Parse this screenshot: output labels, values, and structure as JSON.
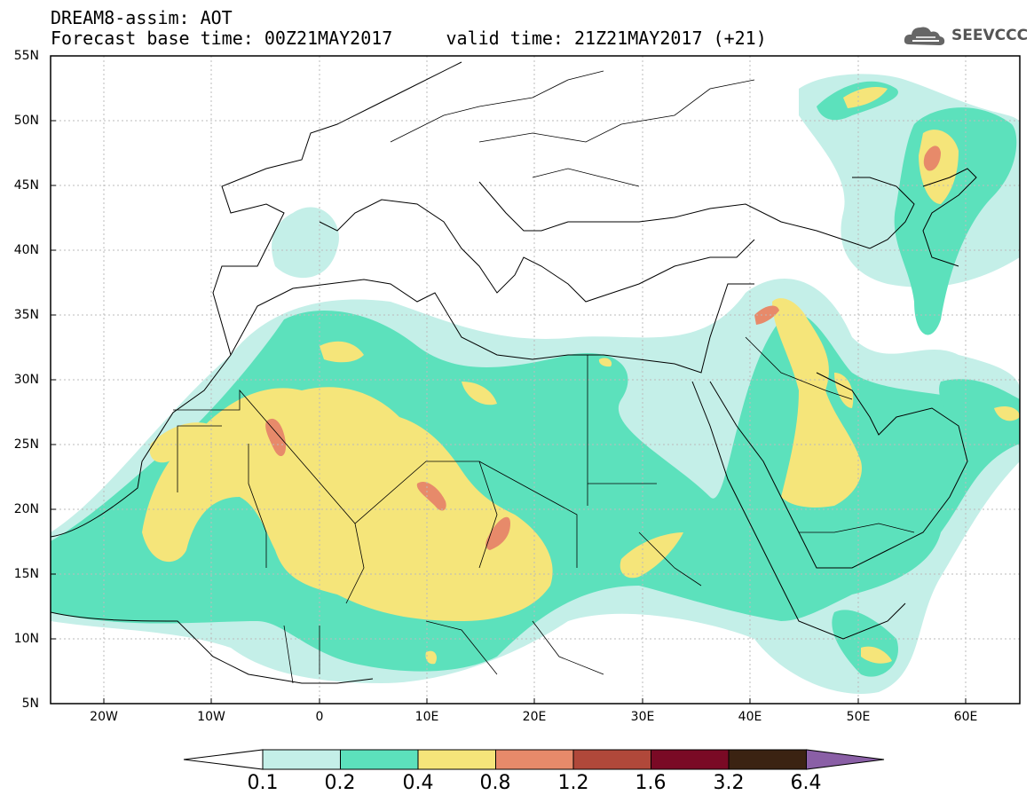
{
  "header": {
    "line1": "DREAM8-assim: AOT",
    "line2": "Forecast base time: 00Z21MAY2017     valid time: 21Z21MAY2017 (+21)"
  },
  "logo": {
    "text": "SEEVCCC",
    "icon": "cloud-icon"
  },
  "map": {
    "lat_labels": [
      "55N",
      "50N",
      "45N",
      "40N",
      "35N",
      "30N",
      "25N",
      "20N",
      "15N",
      "10N",
      "5N"
    ],
    "lon_labels": [
      "20W",
      "10W",
      "0",
      "10E",
      "20E",
      "30E",
      "40E",
      "50E",
      "60E"
    ],
    "lon_range": [
      -25,
      65
    ],
    "lat_range": [
      5,
      55
    ],
    "gridlines": true
  },
  "colorbar": {
    "levels": [
      "0.1",
      "0.2",
      "0.4",
      "0.8",
      "1.2",
      "1.6",
      "3.2",
      "6.4"
    ],
    "colors": [
      "#ffffff",
      "#c4efe8",
      "#5ce1bc",
      "#f5e57a",
      "#e78a6a",
      "#b0483a",
      "#7a0a25",
      "#3b2312",
      "#8a5fa6"
    ]
  }
}
